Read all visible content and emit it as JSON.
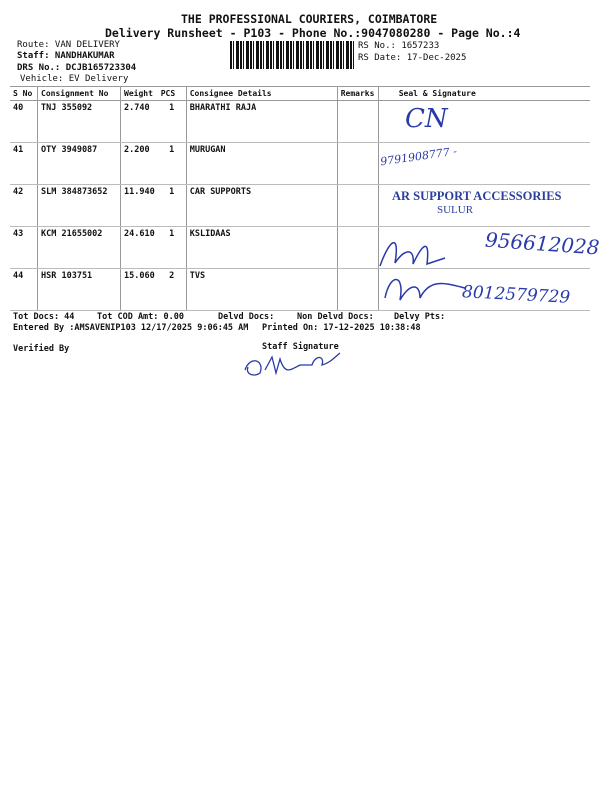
{
  "header": {
    "company": "THE PROFESSIONAL COURIERS, COIMBATORE",
    "subtitle": "Delivery Runsheet - P103 - Phone No.:9047080280 - Page No.:4",
    "route": "Route: VAN DELIVERY",
    "staff": "Staff: NANDHAKUMAR",
    "drs": "DRS No.: DCJB165723304",
    "vehicle": "Vehicle: EV Delivery",
    "rs_no": "RS No.: 1657233",
    "rs_date": "RS Date: 17-Dec-2025"
  },
  "table": {
    "columns": [
      "S No",
      "Consignment No",
      "Weight",
      "PCS",
      "Consignee Details",
      "Remarks",
      "Seal & Signature"
    ],
    "rows": [
      {
        "sno": "40",
        "cn": "TNJ 355092",
        "weight": "2.740",
        "pcs": "1",
        "consignee": "BHARATHI RAJA",
        "remarks": ""
      },
      {
        "sno": "41",
        "cn": "OTY 3949087",
        "weight": "2.200",
        "pcs": "1",
        "consignee": "MURUGAN",
        "remarks": ""
      },
      {
        "sno": "42",
        "cn": "SLM 384873652",
        "weight": "11.940",
        "pcs": "1",
        "consignee": "CAR SUPPORTS",
        "remarks": ""
      },
      {
        "sno": "43",
        "cn": "KCM 21655002",
        "weight": "24.610",
        "pcs": "1",
        "consignee": "KSLIDAAS",
        "remarks": ""
      },
      {
        "sno": "44",
        "cn": "HSR 103751",
        "weight": "15.060",
        "pcs": "2",
        "consignee": "TVS",
        "remarks": ""
      }
    ]
  },
  "handwriting": {
    "r40": "CN",
    "r41": "9791908777 -",
    "r42_stamp": "AR SUPPORT ACCESSORIES",
    "r42_stamp2": "SULUR",
    "r43": "9566120286",
    "r44": "8012579729"
  },
  "footer": {
    "tot_docs": "Tot Docs:  44",
    "tot_cod": "Tot COD Amt:    0.00",
    "delvd": "Delvd Docs:",
    "non_delvd": "Non Delvd Docs:",
    "delvy_pts": "Delvy Pts:",
    "entered": "Entered By :AMSAVENIP103 12/17/2025 9:06:45 AM",
    "printed": "Printed On: 17-12-2025 10:38:48",
    "verified": "Verified By",
    "staff_sig": "Staff Signature"
  },
  "colors": {
    "ink": "#2a3aa8"
  }
}
